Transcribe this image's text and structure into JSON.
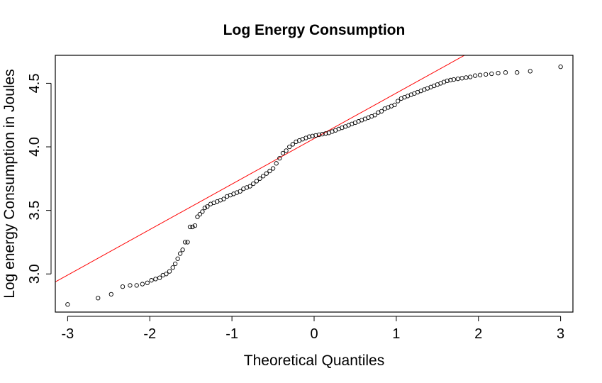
{
  "chart_data": {
    "type": "scatter",
    "title": "Log Energy Consumption",
    "xlabel": "Theoretical Quantiles",
    "ylabel": "Log energy Consumption in Joules",
    "xlim": [
      -3.15,
      3.15
    ],
    "ylim": [
      2.7,
      4.72
    ],
    "xticks": [
      -3,
      -2,
      -1,
      0,
      1,
      2,
      3
    ],
    "xtick_labels": [
      "-3",
      "-2",
      "-1",
      "0",
      "1",
      "2",
      "3"
    ],
    "yticks": [
      3.0,
      3.5,
      4.0,
      4.5
    ],
    "ytick_labels": [
      "3.0",
      "3.5",
      "4.0",
      "4.5"
    ],
    "grid": false,
    "qq_line": {
      "slope": 0.358,
      "intercept": 4.065,
      "color": "#ff0000"
    },
    "point_color": "#000000",
    "series": [
      {
        "x": [
          -3.0,
          -2.63,
          -2.47,
          -2.33,
          -2.24,
          -2.16,
          -2.09,
          -2.03,
          -1.98,
          -1.93,
          -1.88,
          -1.84,
          -1.8,
          -1.76,
          -1.72,
          -1.69,
          -1.66,
          -1.63,
          -1.6,
          -1.57,
          -1.54,
          -1.51,
          -1.48,
          -1.45,
          -1.42,
          -1.39,
          -1.36,
          -1.33,
          -1.3,
          -1.26,
          -1.22,
          -1.18,
          -1.14,
          -1.1,
          -1.06,
          -1.02,
          -0.98,
          -0.94,
          -0.9,
          -0.86,
          -0.82,
          -0.78,
          -0.74,
          -0.7,
          -0.66,
          -0.62,
          -0.58,
          -0.54,
          -0.5,
          -0.46,
          -0.42,
          -0.38,
          -0.34,
          -0.3,
          -0.26,
          -0.22,
          -0.18,
          -0.14,
          -0.1,
          -0.06,
          -0.02,
          0.02,
          0.06,
          0.1,
          0.14,
          0.18,
          0.22,
          0.26,
          0.3,
          0.34,
          0.38,
          0.42,
          0.46,
          0.5,
          0.54,
          0.58,
          0.62,
          0.66,
          0.7,
          0.74,
          0.78,
          0.82,
          0.86,
          0.9,
          0.94,
          0.98,
          1.02,
          1.06,
          1.1,
          1.14,
          1.18,
          1.22,
          1.26,
          1.3,
          1.34,
          1.38,
          1.42,
          1.46,
          1.5,
          1.54,
          1.58,
          1.62,
          1.66,
          1.7,
          1.75,
          1.8,
          1.85,
          1.9,
          1.96,
          2.02,
          2.09,
          2.16,
          2.24,
          2.33,
          2.47,
          2.63,
          3.0
        ],
        "y": [
          2.76,
          2.81,
          2.84,
          2.9,
          2.91,
          2.91,
          2.92,
          2.93,
          2.95,
          2.96,
          2.97,
          2.99,
          3.0,
          3.02,
          3.05,
          3.08,
          3.12,
          3.16,
          3.19,
          3.25,
          3.25,
          3.37,
          3.37,
          3.38,
          3.45,
          3.47,
          3.49,
          3.52,
          3.53,
          3.55,
          3.56,
          3.57,
          3.58,
          3.59,
          3.61,
          3.62,
          3.63,
          3.64,
          3.65,
          3.67,
          3.68,
          3.69,
          3.71,
          3.73,
          3.75,
          3.77,
          3.79,
          3.81,
          3.83,
          3.87,
          3.91,
          3.95,
          3.97,
          4.0,
          4.02,
          4.04,
          4.05,
          4.06,
          4.07,
          4.08,
          4.085,
          4.09,
          4.095,
          4.1,
          4.105,
          4.11,
          4.12,
          4.13,
          4.14,
          4.15,
          4.16,
          4.17,
          4.18,
          4.19,
          4.2,
          4.21,
          4.22,
          4.23,
          4.24,
          4.25,
          4.27,
          4.28,
          4.3,
          4.31,
          4.32,
          4.33,
          4.36,
          4.38,
          4.39,
          4.4,
          4.41,
          4.42,
          4.43,
          4.44,
          4.45,
          4.46,
          4.47,
          4.48,
          4.49,
          4.5,
          4.51,
          4.52,
          4.525,
          4.53,
          4.535,
          4.54,
          4.545,
          4.55,
          4.56,
          4.565,
          4.57,
          4.575,
          4.58,
          4.585,
          4.585,
          4.595,
          4.63
        ]
      }
    ]
  }
}
